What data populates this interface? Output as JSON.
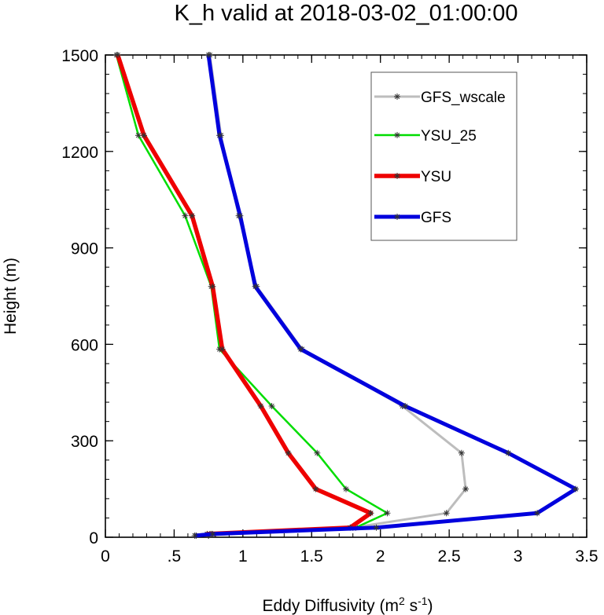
{
  "chart_data": {
    "type": "line",
    "title": "K_h valid at 2018-03-02_01:00:00",
    "xlabel": "Eddy Diffusivity (m",
    "xlabel_sup1": "2",
    "xlabel_mid": " s",
    "xlabel_sup2": "-1",
    "xlabel_end": ")",
    "ylabel": "Height (m)",
    "xlim": [
      0,
      3.5
    ],
    "ylim": [
      0,
      1500
    ],
    "x_ticks": [
      0,
      0.5,
      1,
      1.5,
      2,
      2.5,
      3,
      3.5
    ],
    "x_tick_labels": [
      "0",
      ".5",
      "1",
      "1.5",
      "2",
      "2.5",
      "3",
      "3.5"
    ],
    "y_ticks": [
      0,
      300,
      600,
      900,
      1200,
      1500
    ],
    "y_tick_labels": [
      "0",
      "300",
      "600",
      "900",
      "1200",
      "1500"
    ],
    "grid": false,
    "legend_position": "top-right",
    "heights": [
      1500,
      1250,
      1000,
      780,
      585,
      408,
      262,
      150,
      75,
      30,
      10,
      5
    ],
    "series": [
      {
        "name": "GFS_wscale",
        "color": "#bdbdbd",
        "values": [
          0.76,
          0.84,
          0.97,
          1.1,
          1.43,
          2.16,
          2.59,
          2.62,
          2.48,
          1.8,
          0.77,
          0.66
        ]
      },
      {
        "name": "YSU_25",
        "color": "#00dd00",
        "values": [
          0.08,
          0.24,
          0.58,
          0.77,
          0.83,
          1.21,
          1.54,
          1.75,
          2.05,
          1.82,
          0.76,
          0.75
        ]
      },
      {
        "name": "YSU",
        "color": "#ee0000",
        "values": [
          0.09,
          0.28,
          0.63,
          0.78,
          0.85,
          1.13,
          1.33,
          1.53,
          1.93,
          1.78,
          0.74,
          0.75
        ]
      },
      {
        "name": "GFS",
        "color": "#0000dd",
        "values": [
          0.75,
          0.83,
          0.98,
          1.09,
          1.42,
          2.18,
          2.93,
          3.42,
          3.14,
          1.97,
          0.78,
          0.65
        ]
      }
    ]
  }
}
